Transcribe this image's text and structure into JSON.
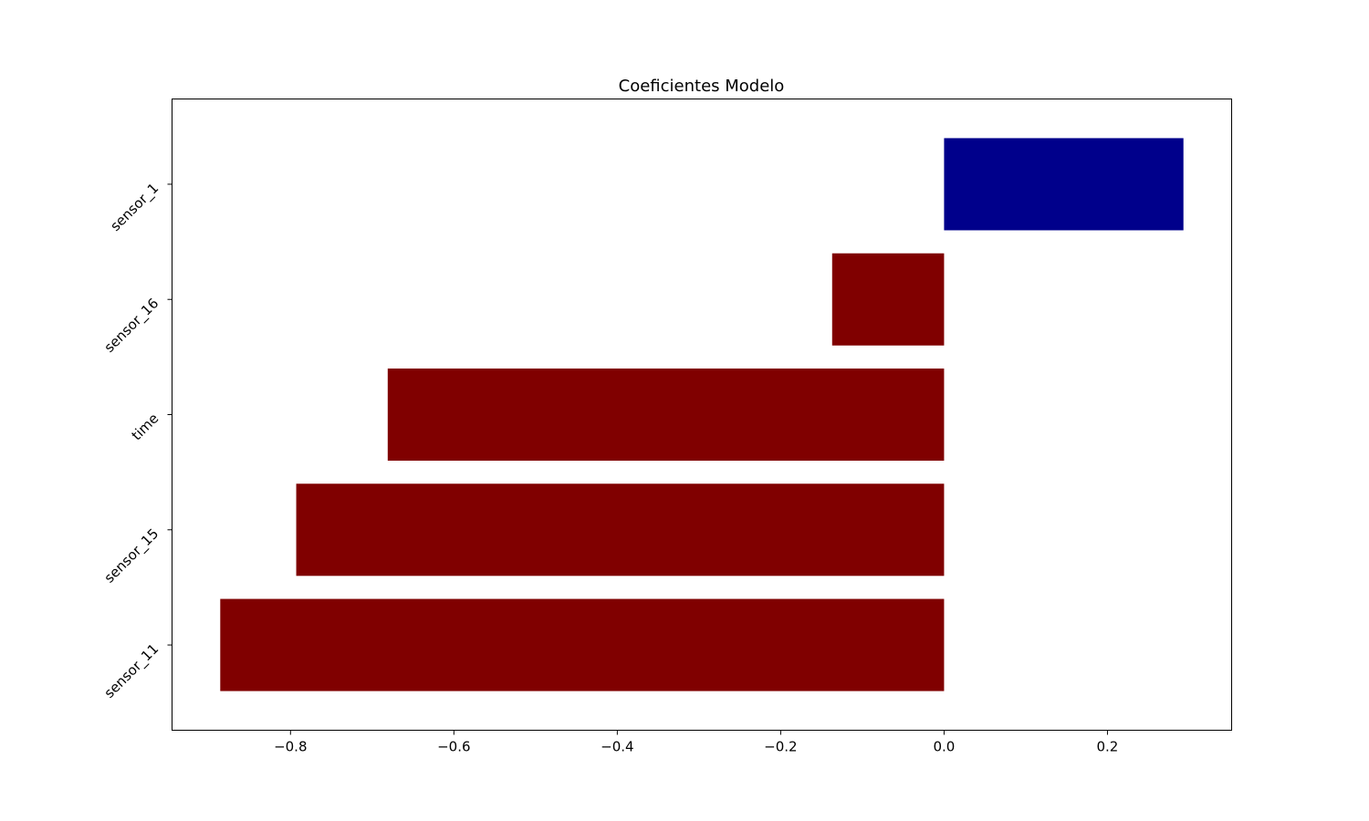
{
  "chart_data": {
    "type": "bar",
    "orientation": "horizontal",
    "title": "Coeficientes Modelo",
    "xlabel": "",
    "ylabel": "",
    "categories": [
      "sensor_11",
      "sensor_15",
      "time",
      "sensor_16",
      "sensor_1"
    ],
    "values": [
      -0.886,
      -0.793,
      -0.681,
      -0.137,
      0.293
    ],
    "bar_colors": [
      "#800000",
      "#800000",
      "#800000",
      "#800000",
      "#00008b"
    ],
    "negative_color": "#800000",
    "positive_color": "#00008b",
    "xlim": [
      -0.945,
      0.352
    ],
    "xticks": [
      -0.8,
      -0.6,
      -0.4,
      -0.2,
      0.0,
      0.2
    ],
    "xtick_labels": [
      "−0.8",
      "−0.6",
      "−0.4",
      "−0.2",
      "0.0",
      "0.2"
    ],
    "grid": false,
    "legend": "none"
  }
}
